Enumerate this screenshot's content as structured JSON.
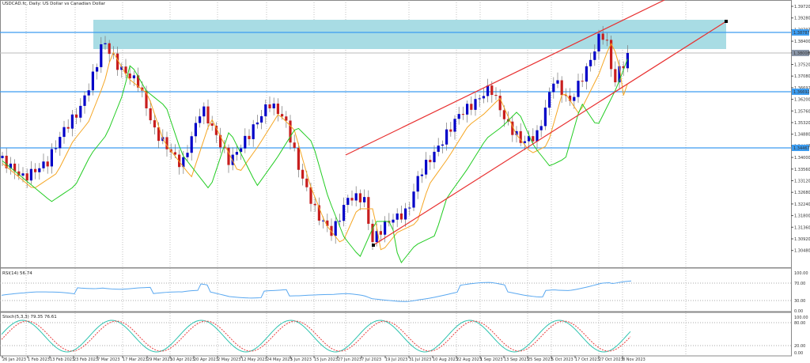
{
  "header": {
    "title": "USDCAD.fc, Daily: US Dollar vs Canadian Dollar"
  },
  "indicators": {
    "rsi_label": "RSI(14) 56.74",
    "stoch_label": "Stoch(5,3,3) 79.35 76.61"
  },
  "colors": {
    "bull": "#0000c8",
    "bear": "#c81e1e",
    "ma_fast": "#f5a623",
    "ma_slow": "#22cc22",
    "hline": "#3c9cf0",
    "channel": "#e83030",
    "zone": "#a8dce4",
    "rsi": "#5aa8f0",
    "stoch_main": "#2ec4b0",
    "stoch_signal": "#e84040",
    "grid": "#888888"
  },
  "chart_data": {
    "type": "candlestick",
    "title": "USDCAD.fc, Daily: US Dollar vs Canadian Dollar",
    "y_ticks": [
      "1.39720",
      "1.39280",
      "1.38787",
      "1.38400",
      "1.38008",
      "1.37520",
      "1.37080",
      "1.36692",
      "1.36200",
      "1.35760",
      "1.35320",
      "1.34880",
      "1.34467",
      "1.34000",
      "1.33560",
      "1.33120",
      "1.32680",
      "1.32240",
      "1.31800",
      "1.31360",
      "1.30920",
      "1.30480"
    ],
    "highlighted_levels": [
      {
        "label": "1.38787",
        "y": 41
      },
      {
        "label": "1.36692",
        "y": 116
      },
      {
        "label": "1.34467",
        "y": 187
      }
    ],
    "current_price": {
      "label": "1.38008",
      "y": 67
    },
    "x_ticks": [
      "26 Jan 2023",
      "1 Feb 2023",
      "13 Feb 2023",
      "23 Feb 2023",
      "7 Mar 2023",
      "17 Mar 2023",
      "29 Mar 2023",
      "10 Apr 2023",
      "20 Apr 2023",
      "2 May 2023",
      "12 May 2023",
      "24 May 2023",
      "5 Jun 2023",
      "15 Jun 2023",
      "27 Jun 2023",
      "7 Jul 2023",
      "19 Jul 2023",
      "31 Jul 2023",
      "10 Aug 2023",
      "22 Aug 2023",
      "1 Sep 2023",
      "13 Sep 2023",
      "25 Sep 2023",
      "5 Oct 2023",
      "17 Oct 2023",
      "27 Oct 2023",
      "8 Nov 2023"
    ],
    "rsi_levels": [
      "100.00",
      "70.00",
      "30.00",
      "0.00"
    ],
    "stoch_levels": [
      "100.00",
      "80.00",
      "20.00",
      "0.00"
    ],
    "rsi_value": 56.74,
    "stoch_values": [
      79.35,
      76.61
    ]
  }
}
